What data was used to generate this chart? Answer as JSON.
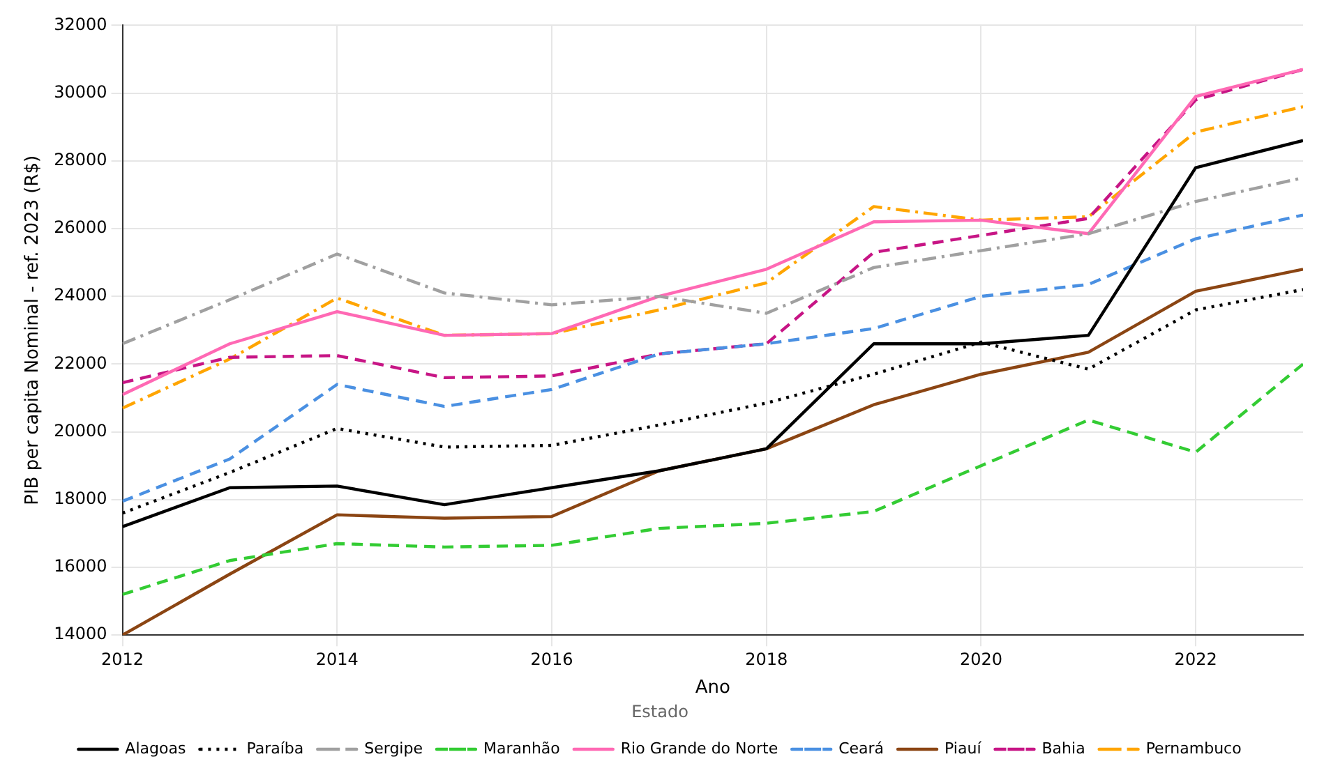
{
  "chart_data": {
    "type": "line",
    "xlabel": "Ano",
    "ylabel": "PIB per capita Nominal - ref. 2023 (R$)",
    "legend_title": "Estado",
    "legend": "bottom",
    "grid": true,
    "marker": "none",
    "x": [
      2012,
      2013,
      2014,
      2015,
      2016,
      2017,
      2018,
      2019,
      2020,
      2021,
      2022,
      2023
    ],
    "xlim": [
      2012,
      2023
    ],
    "xticks": [
      2012,
      2014,
      2016,
      2018,
      2020,
      2022
    ],
    "ylim": [
      14000,
      32000
    ],
    "yticks": [
      14000,
      16000,
      18000,
      20000,
      22000,
      24000,
      26000,
      28000,
      30000,
      32000
    ],
    "series": [
      {
        "name": "Alagoas",
        "color": "#000000",
        "line_style": "solid",
        "values": [
          17200,
          18350,
          18400,
          17850,
          18350,
          18850,
          19500,
          22600,
          22600,
          22850,
          27800,
          28600
        ]
      },
      {
        "name": "Paraíba",
        "color": "#000000",
        "line_style": "dotted",
        "values": [
          17600,
          18800,
          20100,
          19550,
          19600,
          20200,
          20850,
          21700,
          22650,
          21850,
          23600,
          24200
        ]
      },
      {
        "name": "Sergipe",
        "color": "#a0a0a0",
        "line_style": "dashdot",
        "values": [
          22600,
          23900,
          25250,
          24100,
          23750,
          24000,
          23500,
          24850,
          25350,
          25850,
          26800,
          27500
        ]
      },
      {
        "name": "Maranhão",
        "color": "#33cc33",
        "line_style": "dashed",
        "values": [
          15200,
          16200,
          16700,
          16600,
          16650,
          17150,
          17300,
          17650,
          19000,
          20350,
          19400,
          22000
        ]
      },
      {
        "name": "Rio Grande do Norte",
        "color": "#ff69b4",
        "line_style": "solid",
        "values": [
          21100,
          22600,
          23550,
          22850,
          22900,
          24000,
          24800,
          26200,
          26250,
          25850,
          29900,
          30700
        ]
      },
      {
        "name": "Ceará",
        "color": "#4a90e2",
        "line_style": "dashed",
        "values": [
          17950,
          19200,
          21400,
          20750,
          21250,
          22300,
          22600,
          23050,
          24000,
          24350,
          25700,
          26400
        ]
      },
      {
        "name": "Piauí",
        "color": "#8b4513",
        "line_style": "solid",
        "values": [
          14000,
          15800,
          17550,
          17450,
          17500,
          18850,
          19500,
          20800,
          21700,
          22350,
          24150,
          24800
        ]
      },
      {
        "name": "Bahia",
        "color": "#c71585",
        "line_style": "dashed",
        "values": [
          21450,
          22200,
          22250,
          21600,
          21650,
          22300,
          22600,
          25300,
          25800,
          26300,
          29800,
          30700
        ]
      },
      {
        "name": "Pernambuco",
        "color": "#ffa500",
        "line_style": "dashdot",
        "values": [
          20700,
          22150,
          23950,
          22850,
          22900,
          23600,
          24400,
          26650,
          26250,
          26350,
          28850,
          29600
        ]
      }
    ]
  }
}
